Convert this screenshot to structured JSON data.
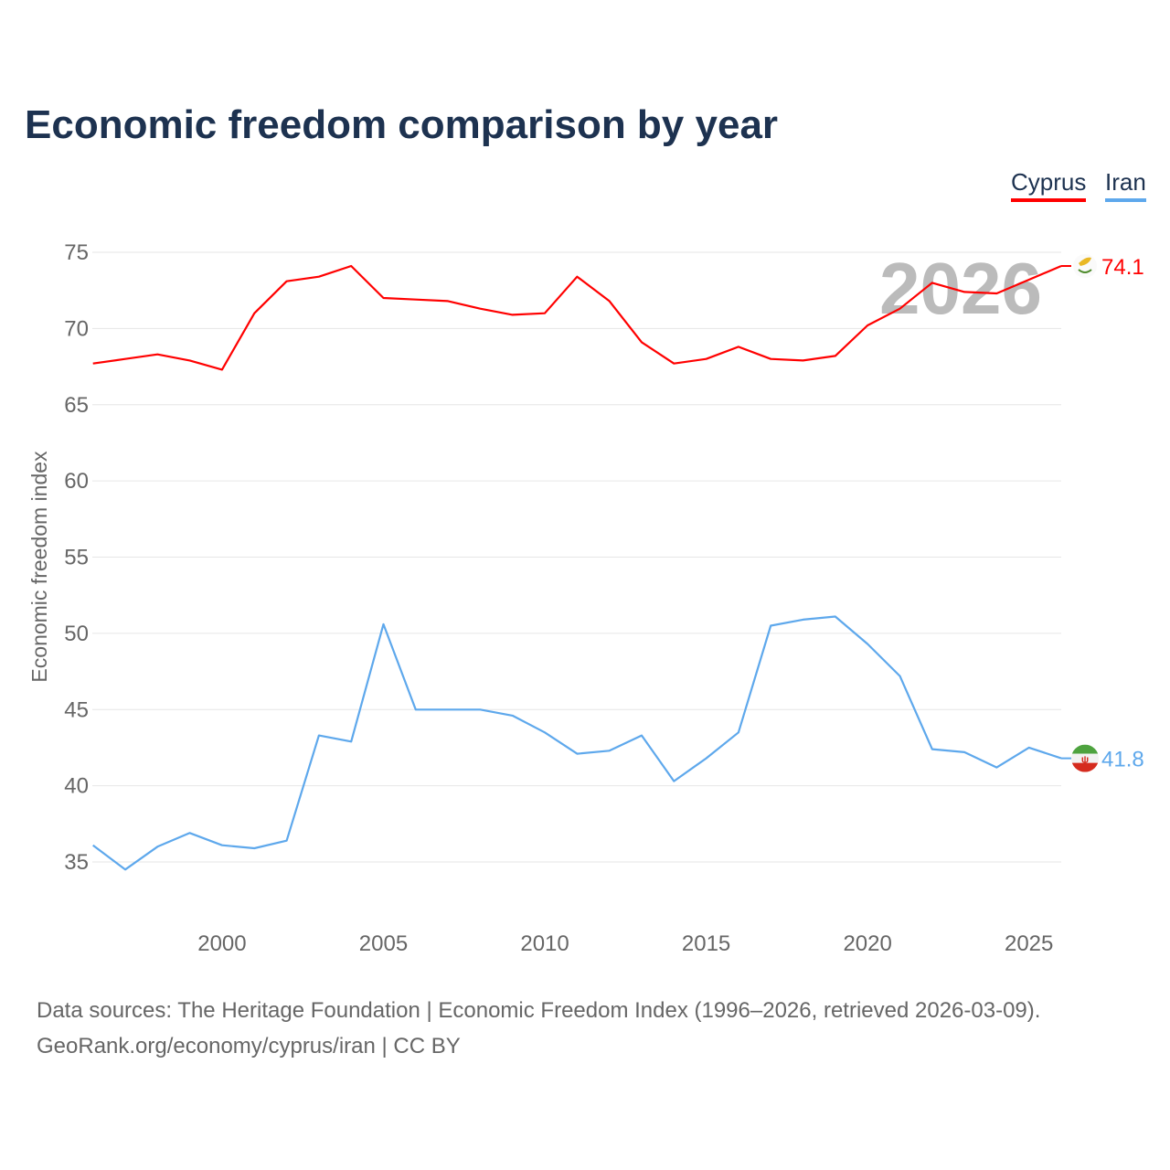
{
  "title": "Economic freedom comparison by year",
  "legend": [
    {
      "label": "Cyprus",
      "color": "#ff0000"
    },
    {
      "label": "Iran",
      "color": "#5ea8ec"
    }
  ],
  "source": {
    "line1": "Data sources: The Heritage Foundation | Economic Freedom Index (1996–2026, retrieved 2026-03-09).",
    "line2": "GeoRank.org/economy/cyprus/iran | CC BY"
  },
  "chart_data": {
    "type": "line",
    "title": "Economic freedom comparison by year",
    "xlabel": "",
    "ylabel": "Economic freedom index",
    "year_watermark": "2026",
    "xlim": [
      1996,
      2026
    ],
    "ylim": [
      31,
      77
    ],
    "xticks": [
      "2000",
      "2005",
      "2010",
      "2015",
      "2020",
      "2025"
    ],
    "yticks": [
      "35",
      "40",
      "45",
      "50",
      "55",
      "60",
      "65",
      "70",
      "75"
    ],
    "grid": true,
    "legend_position": "top-right",
    "x": [
      1996,
      1997,
      1998,
      1999,
      2000,
      2001,
      2002,
      2003,
      2004,
      2005,
      2006,
      2007,
      2008,
      2009,
      2010,
      2011,
      2012,
      2013,
      2014,
      2015,
      2016,
      2017,
      2018,
      2019,
      2020,
      2021,
      2022,
      2023,
      2024,
      2025,
      2026
    ],
    "series": [
      {
        "name": "Cyprus",
        "color": "#ff0000",
        "end_label": "74.1",
        "values": [
          67.7,
          68.0,
          68.3,
          67.9,
          67.3,
          71.0,
          73.1,
          73.4,
          74.1,
          72.0,
          71.9,
          71.8,
          71.3,
          70.9,
          71.0,
          73.4,
          71.8,
          69.1,
          67.7,
          68.0,
          68.8,
          68.0,
          67.9,
          68.2,
          70.2,
          71.3,
          73.0,
          72.4,
          72.3,
          73.2,
          74.1
        ]
      },
      {
        "name": "Iran",
        "color": "#5ea8ec",
        "end_label": "41.8",
        "values": [
          36.1,
          34.5,
          36.0,
          36.9,
          36.1,
          35.9,
          36.4,
          43.3,
          42.9,
          50.6,
          45.0,
          45.0,
          45.0,
          44.6,
          43.5,
          42.1,
          42.3,
          43.3,
          40.3,
          41.8,
          43.5,
          50.5,
          50.9,
          51.1,
          49.3,
          47.2,
          42.4,
          42.2,
          41.2,
          42.5,
          41.8
        ]
      }
    ]
  }
}
